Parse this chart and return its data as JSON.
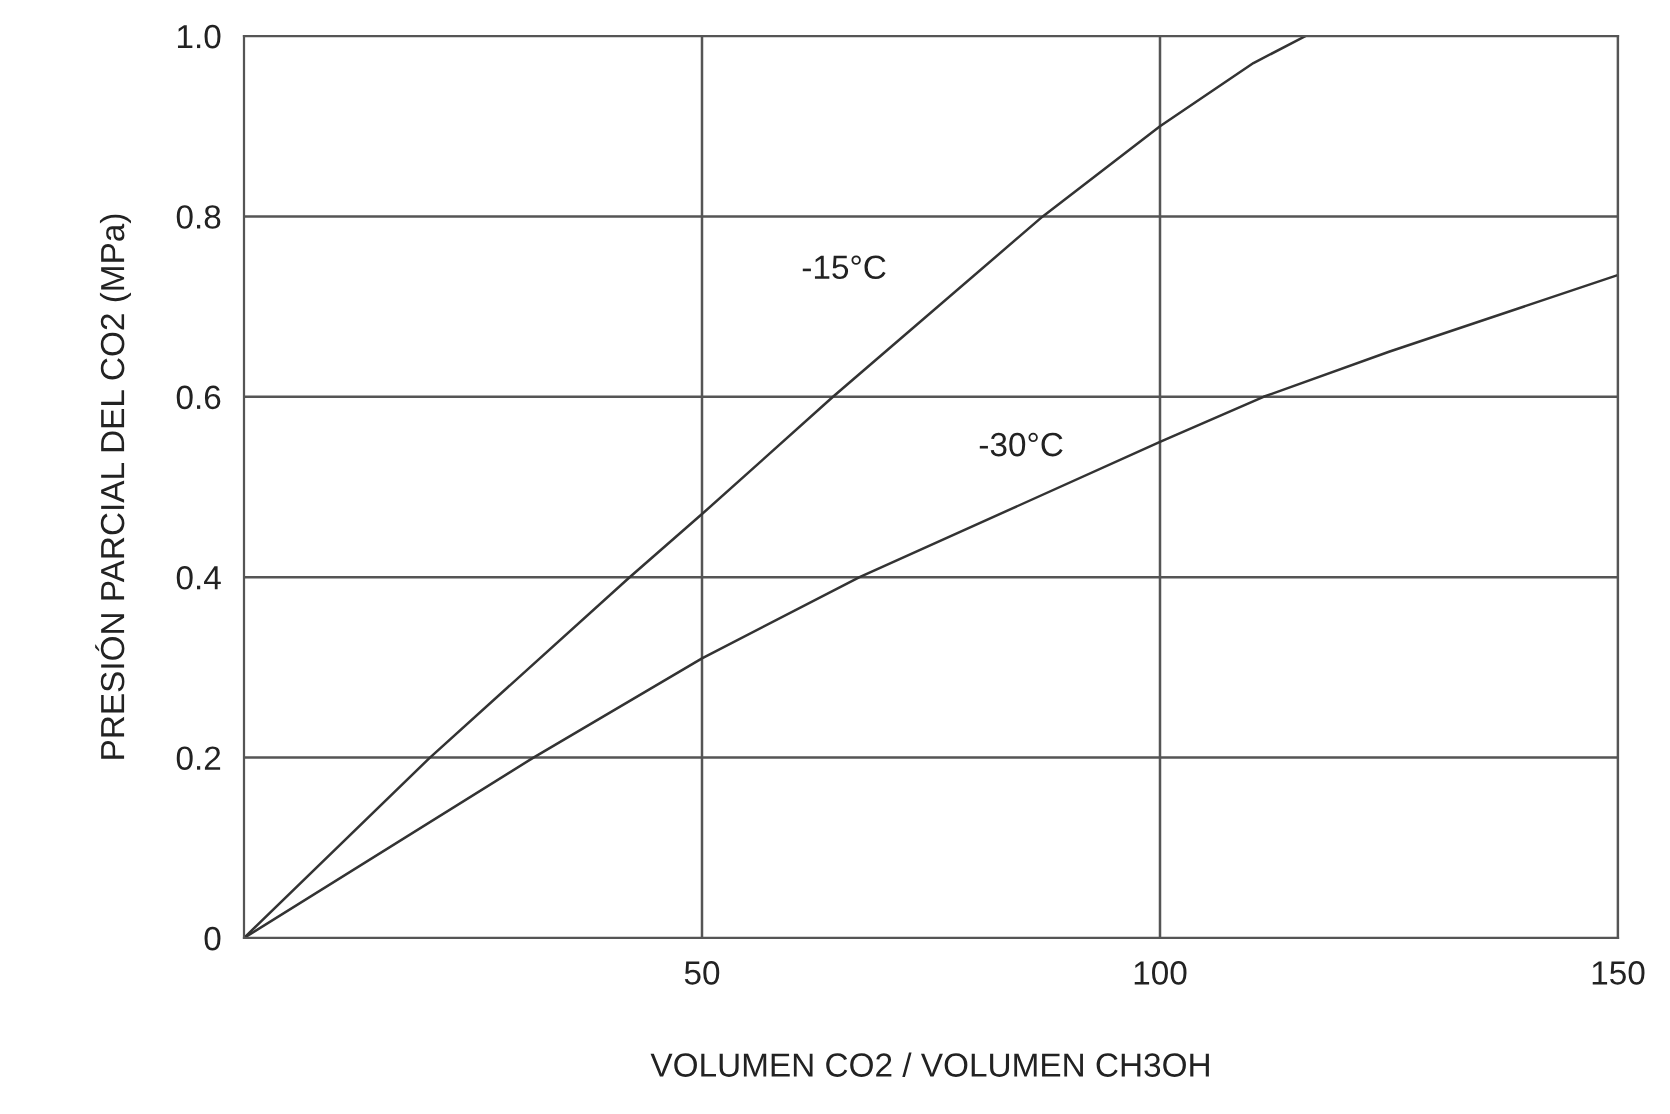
{
  "chart_data": {
    "type": "line",
    "xlabel": "VOLUMEN CO2 / VOLUMEN CH3OH",
    "ylabel": "PRESIÓN PARCIAL DEL CO2 (MPa)",
    "series": [
      {
        "name": "-15°C",
        "color": "#333333",
        "x": [
          0,
          20.3,
          42.1,
          50,
          64.3,
          87.2,
          100,
          110.2,
          115.9
        ],
        "values": [
          0,
          0.2,
          0.4,
          0.47,
          0.6,
          0.8,
          0.9,
          0.97,
          1.0
        ]
      },
      {
        "name": "-30°C",
        "color": "#333333",
        "x": [
          0,
          31.6,
          50,
          67.2,
          100,
          111.3,
          125,
          150
        ],
        "values": [
          0,
          0.2,
          0.31,
          0.4,
          0.55,
          0.6,
          0.65,
          0.735
        ]
      }
    ],
    "xlim": [
      0,
      150
    ],
    "xticks": [
      50,
      100,
      150
    ],
    "ylim": [
      0,
      1.0
    ],
    "yticks": [
      0,
      0.2,
      0.4,
      0.6,
      0.8,
      {
        "value": 1.0,
        "label": "1.0"
      }
    ],
    "grid": true,
    "marker": "none",
    "line_style": "solid",
    "legend": false
  }
}
